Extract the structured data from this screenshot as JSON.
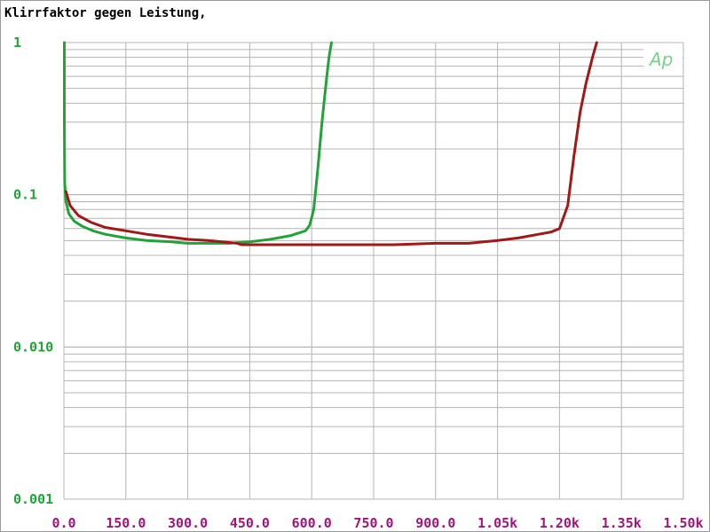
{
  "chart_data": {
    "type": "line",
    "title": "Klirrfaktor gegen Leistung,",
    "xlabel": "",
    "ylabel": "",
    "x_scale": "linear",
    "y_scale": "log",
    "xlim": [
      0,
      1500
    ],
    "ylim": [
      0.001,
      1
    ],
    "x_ticks": [
      0,
      150,
      300,
      450,
      600,
      750,
      900,
      1050,
      1200,
      1350,
      1500
    ],
    "x_tick_labels": [
      "0.0",
      "150.0",
      "300.0",
      "450.0",
      "600.0",
      "750.0",
      "900.0",
      "1.05k",
      "1.20k",
      "1.35k",
      "1.50k"
    ],
    "y_ticks": [
      1,
      0.1,
      0.01,
      0.001
    ],
    "y_tick_labels": [
      "1",
      "0.1",
      "0.010",
      "0.001"
    ],
    "grid": true,
    "legend_mark": "Ap",
    "series": [
      {
        "color": "#22a33a",
        "points": [
          [
            1,
            1
          ],
          [
            1,
            0.3
          ],
          [
            2,
            0.12
          ],
          [
            5,
            0.09
          ],
          [
            12,
            0.075
          ],
          [
            25,
            0.067
          ],
          [
            45,
            0.062
          ],
          [
            70,
            0.058
          ],
          [
            100,
            0.055
          ],
          [
            150,
            0.052
          ],
          [
            200,
            0.05
          ],
          [
            260,
            0.049
          ],
          [
            300,
            0.048
          ],
          [
            350,
            0.048
          ],
          [
            400,
            0.048
          ],
          [
            450,
            0.049
          ],
          [
            500,
            0.051
          ],
          [
            550,
            0.054
          ],
          [
            585,
            0.058
          ],
          [
            595,
            0.063
          ],
          [
            605,
            0.08
          ],
          [
            615,
            0.15
          ],
          [
            625,
            0.3
          ],
          [
            635,
            0.55
          ],
          [
            642,
            0.8
          ],
          [
            648,
            1
          ]
        ]
      },
      {
        "color": "#a01818",
        "points": [
          [
            5,
            0.105
          ],
          [
            15,
            0.085
          ],
          [
            35,
            0.073
          ],
          [
            65,
            0.066
          ],
          [
            100,
            0.061
          ],
          [
            150,
            0.058
          ],
          [
            200,
            0.055
          ],
          [
            250,
            0.053
          ],
          [
            300,
            0.051
          ],
          [
            350,
            0.05
          ],
          [
            420,
            0.048
          ],
          [
            430,
            0.047
          ],
          [
            500,
            0.047
          ],
          [
            600,
            0.047
          ],
          [
            700,
            0.047
          ],
          [
            800,
            0.047
          ],
          [
            900,
            0.048
          ],
          [
            980,
            0.048
          ],
          [
            1050,
            0.05
          ],
          [
            1100,
            0.052
          ],
          [
            1150,
            0.055
          ],
          [
            1180,
            0.057
          ],
          [
            1200,
            0.06
          ],
          [
            1220,
            0.085
          ],
          [
            1235,
            0.18
          ],
          [
            1250,
            0.35
          ],
          [
            1265,
            0.55
          ],
          [
            1280,
            0.8
          ],
          [
            1290,
            1
          ]
        ]
      }
    ]
  },
  "colors": {
    "y_tick": "#22a33a",
    "x_tick": "#a0157a",
    "grid": "#b4b4b4",
    "ap": "#7ccf8a"
  }
}
